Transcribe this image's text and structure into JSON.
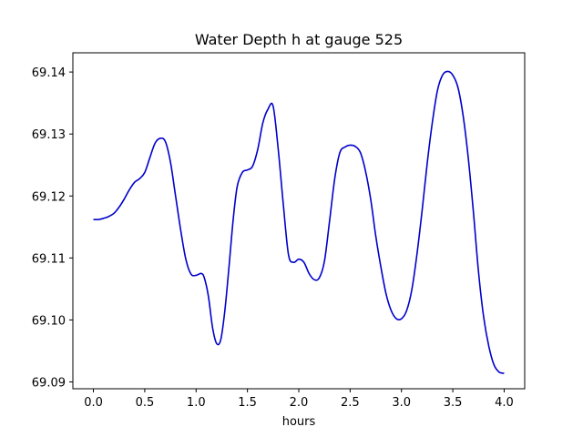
{
  "chart_data": {
    "type": "line",
    "title": "Water Depth h at gauge 525",
    "xlabel": "hours",
    "ylabel": "",
    "xlim": [
      -0.2,
      4.2
    ],
    "ylim": [
      69.0889,
      69.1431
    ],
    "xticks": [
      0.0,
      0.5,
      1.0,
      1.5,
      2.0,
      2.5,
      3.0,
      3.5,
      4.0
    ],
    "xtick_labels": [
      "0.0",
      "0.5",
      "1.0",
      "1.5",
      "2.0",
      "2.5",
      "3.0",
      "3.5",
      "4.0"
    ],
    "yticks": [
      69.09,
      69.1,
      69.11,
      69.12,
      69.13,
      69.14
    ],
    "ytick_labels": [
      "69.09",
      "69.10",
      "69.11",
      "69.12",
      "69.13",
      "69.14"
    ],
    "grid": false,
    "series": [
      {
        "color": "#0000cc",
        "x": [
          0.0,
          0.05,
          0.1,
          0.15,
          0.2,
          0.25,
          0.3,
          0.35,
          0.4,
          0.45,
          0.5,
          0.55,
          0.6,
          0.65,
          0.7,
          0.75,
          0.8,
          0.85,
          0.9,
          0.95,
          1.0,
          1.05,
          1.08,
          1.12,
          1.16,
          1.2,
          1.24,
          1.28,
          1.32,
          1.36,
          1.4,
          1.45,
          1.5,
          1.55,
          1.6,
          1.65,
          1.7,
          1.75,
          1.8,
          1.85,
          1.9,
          1.95,
          2.0,
          2.05,
          2.1,
          2.15,
          2.2,
          2.25,
          2.3,
          2.35,
          2.4,
          2.45,
          2.5,
          2.55,
          2.6,
          2.65,
          2.7,
          2.75,
          2.8,
          2.85,
          2.9,
          2.95,
          3.0,
          3.05,
          3.1,
          3.15,
          3.2,
          3.25,
          3.3,
          3.35,
          3.4,
          3.45,
          3.5,
          3.55,
          3.6,
          3.65,
          3.7,
          3.75,
          3.8,
          3.85,
          3.9,
          3.95,
          4.0
        ],
        "y": [
          69.1162,
          69.1162,
          69.1164,
          69.1167,
          69.1172,
          69.1182,
          69.1195,
          69.121,
          69.1222,
          69.1228,
          69.1238,
          69.1262,
          69.1285,
          69.1293,
          69.1288,
          69.1255,
          69.12,
          69.1145,
          69.1098,
          69.1074,
          69.1072,
          69.1075,
          69.1068,
          69.1038,
          69.0988,
          69.0962,
          69.0968,
          69.1015,
          69.1085,
          69.116,
          69.1215,
          69.1238,
          69.1242,
          69.1248,
          69.1275,
          69.1318,
          69.134,
          69.1345,
          69.1275,
          69.1185,
          69.1105,
          69.1093,
          69.1098,
          69.1093,
          69.1075,
          69.1065,
          69.1068,
          69.1095,
          69.116,
          69.1228,
          69.127,
          69.1279,
          69.1282,
          69.128,
          69.127,
          69.124,
          69.1195,
          69.1135,
          69.1085,
          69.1042,
          69.1015,
          69.1002,
          69.1002,
          69.1015,
          69.1048,
          69.1105,
          69.1175,
          69.1252,
          69.1318,
          69.137,
          69.1395,
          69.1401,
          69.1395,
          69.1375,
          69.133,
          69.1262,
          69.1175,
          69.1078,
          69.1005,
          69.0958,
          69.0928,
          69.0916,
          69.0914
        ]
      }
    ]
  }
}
